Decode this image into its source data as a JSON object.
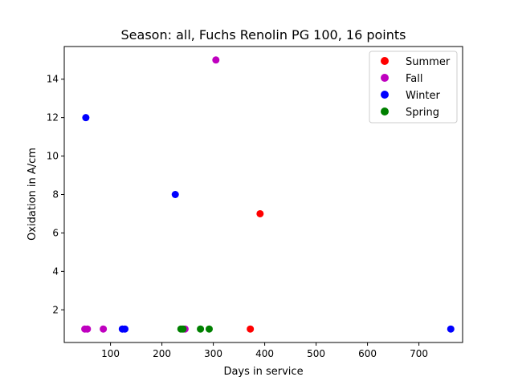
{
  "chart_data": {
    "type": "scatter",
    "title": "Season: all, Fuchs Renolin PG 100, 16 points",
    "xlabel": "Days in service",
    "ylabel": "Oxidation in A/cm",
    "xlim": [
      10,
      785
    ],
    "ylim": [
      0.3,
      15.7
    ],
    "x_ticks": [
      100,
      200,
      300,
      400,
      500,
      600,
      700
    ],
    "y_ticks": [
      2,
      4,
      6,
      8,
      10,
      12,
      14
    ],
    "grid": false,
    "legend_position": "top-right",
    "series": [
      {
        "name": "Summer",
        "color": "#ff0000",
        "points": [
          [
            372,
            1
          ],
          [
            391,
            7
          ]
        ]
      },
      {
        "name": "Fall",
        "color": "#bf00bf",
        "points": [
          [
            50,
            1
          ],
          [
            55,
            1
          ],
          [
            86,
            1
          ],
          [
            245,
            1
          ],
          [
            305,
            15
          ]
        ]
      },
      {
        "name": "Winter",
        "color": "#0000ff",
        "points": [
          [
            52,
            12
          ],
          [
            123,
            1
          ],
          [
            128,
            1
          ],
          [
            226,
            8
          ],
          [
            762,
            1
          ]
        ]
      },
      {
        "name": "Spring",
        "color": "#008000",
        "points": [
          [
            237,
            1
          ],
          [
            241,
            1
          ],
          [
            275,
            1
          ],
          [
            292,
            1
          ]
        ]
      }
    ]
  }
}
